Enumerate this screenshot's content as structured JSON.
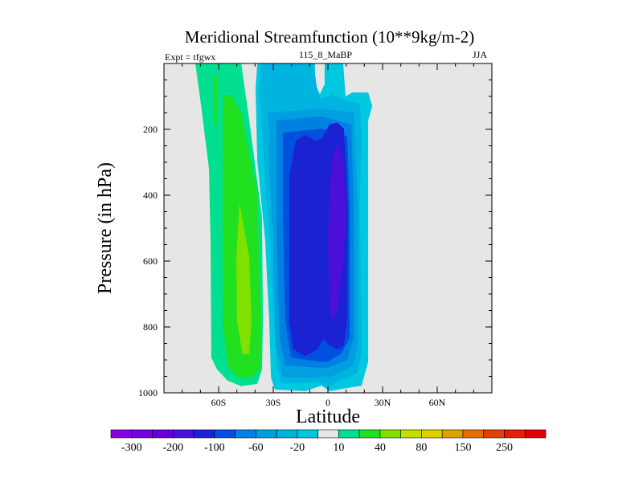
{
  "chart_data": {
    "type": "filled-contour",
    "title": "Meridional Streamfunction (10**9kg/m-2)",
    "left_subtitle": "Expt = tfgwx",
    "center_subtitle": "115_8_MaBP",
    "right_subtitle": "JJA",
    "xlabel": "Latitude",
    "ylabel": "Pressure (in hPa)",
    "xlim": [
      -90,
      90
    ],
    "ylim": [
      1000,
      0
    ],
    "x_ticks": [
      {
        "v": -60,
        "label": "60S"
      },
      {
        "v": -30,
        "label": "30S"
      },
      {
        "v": 0,
        "label": "0"
      },
      {
        "v": 30,
        "label": "30N"
      },
      {
        "v": 60,
        "label": "60N"
      }
    ],
    "y_ticks": [
      {
        "v": 200,
        "label": "200"
      },
      {
        "v": 400,
        "label": "400"
      },
      {
        "v": 600,
        "label": "600"
      },
      {
        "v": 800,
        "label": "800"
      },
      {
        "v": 1000,
        "label": "1000"
      }
    ],
    "background_color": "#e6e6e6",
    "colorbar": {
      "colors": [
        "#8a00e0",
        "#7800d8",
        "#6800d2",
        "#4a10d8",
        "#1a22d2",
        "#0050e0",
        "#0080e0",
        "#00a0e0",
        "#00b4e0",
        "#00c8e0",
        "#e6e6e6",
        "#00e090",
        "#20e020",
        "#80e000",
        "#c0e000",
        "#e0d000",
        "#e0a000",
        "#e07000",
        "#e04000",
        "#e02000",
        "#e00000"
      ],
      "levels": [
        -300,
        -250,
        -200,
        -150,
        -100,
        -80,
        -60,
        -40,
        -20,
        -10,
        10,
        20,
        40,
        60,
        80,
        100,
        150,
        200,
        250,
        300
      ],
      "labels": [
        {
          "level_index": 0,
          "label": "-300"
        },
        {
          "level_index": 2,
          "label": "-200"
        },
        {
          "level_index": 4,
          "label": "-100"
        },
        {
          "level_index": 6,
          "label": "-60"
        },
        {
          "level_index": 8,
          "label": "-20"
        },
        {
          "level_index": 10,
          "label": "10"
        },
        {
          "level_index": 12,
          "label": "40"
        },
        {
          "level_index": 14,
          "label": "80"
        },
        {
          "level_index": 16,
          "label": "150"
        },
        {
          "level_index": 18,
          "label": "250"
        }
      ]
    },
    "contour_regions": [
      {
        "name": "positive-10",
        "color_index": 11,
        "points": [
          [
            -72.8,
            0
          ],
          [
            -47.6,
            0
          ],
          [
            -43.2,
            173
          ],
          [
            -36.2,
            466
          ],
          [
            -35.7,
            783
          ],
          [
            -36.2,
            929
          ],
          [
            -38.8,
            973
          ],
          [
            -47.6,
            980
          ],
          [
            -55.1,
            963
          ],
          [
            -60.9,
            929
          ],
          [
            -64.0,
            893
          ],
          [
            -64.4,
            539
          ],
          [
            -65.3,
            320
          ],
          [
            -69.7,
            124
          ]
        ]
      },
      {
        "name": "positive-20",
        "color_index": 12,
        "points": [
          [
            -57.4,
            95
          ],
          [
            -53.4,
            95
          ],
          [
            -47.6,
            149
          ],
          [
            -38.8,
            393
          ],
          [
            -36.6,
            783
          ],
          [
            -37.1,
            929
          ],
          [
            -42.4,
            954
          ],
          [
            -49.4,
            954
          ],
          [
            -55.1,
            917
          ],
          [
            -57.8,
            783
          ],
          [
            -57.8,
            173
          ]
        ]
      },
      {
        "name": "positive-20-sliver",
        "color_index": 12,
        "points": [
          [
            -62.6,
            39
          ],
          [
            -60.9,
            39
          ],
          [
            -60.9,
            185
          ],
          [
            -62.2,
            185
          ]
        ]
      },
      {
        "name": "positive-40",
        "color_index": 13,
        "points": [
          [
            -48.5,
            424
          ],
          [
            -43.2,
            588
          ],
          [
            -41.9,
            783
          ],
          [
            -43.2,
            880
          ],
          [
            -46.8,
            885
          ],
          [
            -49.9,
            783
          ],
          [
            -50.3,
            588
          ]
        ]
      },
      {
        "name": "negative-10",
        "color_index": 9,
        "points": [
          [
            -38.8,
            0
          ],
          [
            -39.7,
            76
          ],
          [
            -38.8,
            295
          ],
          [
            -34.4,
            539
          ],
          [
            -32.2,
            783
          ],
          [
            -31.3,
            954
          ],
          [
            -29.1,
            990
          ],
          [
            -12.4,
            995
          ],
          [
            -3.5,
            978
          ],
          [
            0.9,
            995
          ],
          [
            18.5,
            978
          ],
          [
            22.1,
            905
          ],
          [
            22.1,
            173
          ],
          [
            24.3,
            129
          ],
          [
            22.1,
            88
          ],
          [
            13.2,
            88
          ],
          [
            9.7,
            100
          ],
          [
            8.4,
            0
          ],
          [
            -1.8,
            0
          ],
          [
            -1.8,
            63
          ],
          [
            -4.4,
            93
          ],
          [
            -7.1,
            63
          ],
          [
            -7.1,
            0
          ]
        ]
      },
      {
        "name": "negative-20",
        "color_index": 8,
        "points": [
          [
            -36.6,
            0
          ],
          [
            -7.9,
            0
          ],
          [
            -5.7,
            88
          ],
          [
            -3.5,
            107
          ],
          [
            1.8,
            95
          ],
          [
            9.7,
            112
          ],
          [
            17.6,
            124
          ],
          [
            18.5,
            222
          ],
          [
            17.6,
            417
          ],
          [
            18.5,
            880
          ],
          [
            16.3,
            941
          ],
          [
            5.3,
            966
          ],
          [
            0,
            983
          ],
          [
            -5.7,
            966
          ],
          [
            -25.6,
            973
          ],
          [
            -27.8,
            929
          ],
          [
            -29.9,
            783
          ],
          [
            -31.8,
            539
          ],
          [
            -35.3,
            295
          ],
          [
            -37.5,
            76
          ]
        ]
      },
      {
        "name": "negative-40",
        "color_index": 7,
        "points": [
          [
            -32.6,
            149
          ],
          [
            -3.5,
            137
          ],
          [
            14.1,
            149
          ],
          [
            16.3,
            417
          ],
          [
            16.3,
            856
          ],
          [
            14.1,
            917
          ],
          [
            0.9,
            954
          ],
          [
            -1.3,
            949
          ],
          [
            -5.7,
            954
          ],
          [
            -24.7,
            954
          ],
          [
            -28.7,
            856
          ],
          [
            -30.0,
            539
          ],
          [
            -32.6,
            295
          ]
        ]
      },
      {
        "name": "negative-60",
        "color_index": 6,
        "points": [
          [
            -28.2,
            173
          ],
          [
            -3.5,
            161
          ],
          [
            12.8,
            185
          ],
          [
            14.1,
            417
          ],
          [
            14.1,
            832
          ],
          [
            10.6,
            900
          ],
          [
            0,
            924
          ],
          [
            -5.3,
            924
          ],
          [
            -23.4,
            917
          ],
          [
            -26.5,
            832
          ],
          [
            -28.2,
            539
          ]
        ]
      },
      {
        "name": "negative-80",
        "color_index": 5,
        "points": [
          [
            -24.7,
            210
          ],
          [
            -3.5,
            198
          ],
          [
            10.6,
            222
          ],
          [
            11.9,
            441
          ],
          [
            11.9,
            832
          ],
          [
            7.5,
            880
          ],
          [
            0,
            905
          ],
          [
            -5.3,
            905
          ],
          [
            -20.3,
            893
          ],
          [
            -23.4,
            783
          ],
          [
            -24.7,
            490
          ]
        ]
      },
      {
        "name": "negative-100",
        "color_index": 4,
        "points": [
          [
            -17.6,
            234
          ],
          [
            -12.4,
            217
          ],
          [
            -7.1,
            234
          ],
          [
            -3.5,
            229
          ],
          [
            0.9,
            185
          ],
          [
            5.3,
            180
          ],
          [
            8.8,
            198
          ],
          [
            11.0,
            441
          ],
          [
            10.6,
            783
          ],
          [
            8.8,
            856
          ],
          [
            5.3,
            868
          ],
          [
            0.9,
            856
          ],
          [
            -2.6,
            837
          ],
          [
            -5.7,
            868
          ],
          [
            -12.4,
            888
          ],
          [
            -19.0,
            868
          ],
          [
            -21.2,
            783
          ],
          [
            -21.2,
            344
          ]
        ]
      },
      {
        "name": "negative-150",
        "color_index": 3,
        "points": [
          [
            5.3,
            241
          ],
          [
            8.8,
            295
          ],
          [
            9.7,
            466
          ],
          [
            8.4,
            612
          ],
          [
            5.3,
            746
          ],
          [
            2.6,
            783
          ],
          [
            0.9,
            746
          ],
          [
            0,
            539
          ],
          [
            0.9,
            368
          ],
          [
            3.1,
            271
          ]
        ]
      }
    ]
  }
}
